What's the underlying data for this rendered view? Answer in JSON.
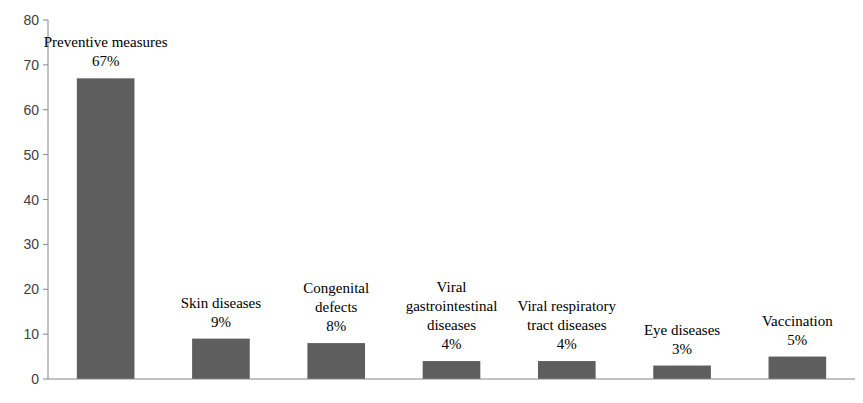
{
  "chart_data": {
    "type": "bar",
    "categories": [
      "Preventive measures",
      "Skin diseases",
      "Congenital defects",
      "Viral gastrointestinal diseases",
      "Viral respiratory tract diseases",
      "Eye diseases",
      "Vaccination"
    ],
    "values": [
      67,
      9,
      8,
      4,
      4,
      3,
      5
    ],
    "value_labels": [
      "67%",
      "9%",
      "8%",
      "4%",
      "4%",
      "3%",
      "5%"
    ],
    "color": "#5e5e5e",
    "ylim": [
      0,
      80
    ],
    "yticks": [
      0,
      10,
      20,
      30,
      40,
      50,
      60,
      70,
      80
    ],
    "grid": false,
    "data_labels": true,
    "tick_labels": "y"
  }
}
